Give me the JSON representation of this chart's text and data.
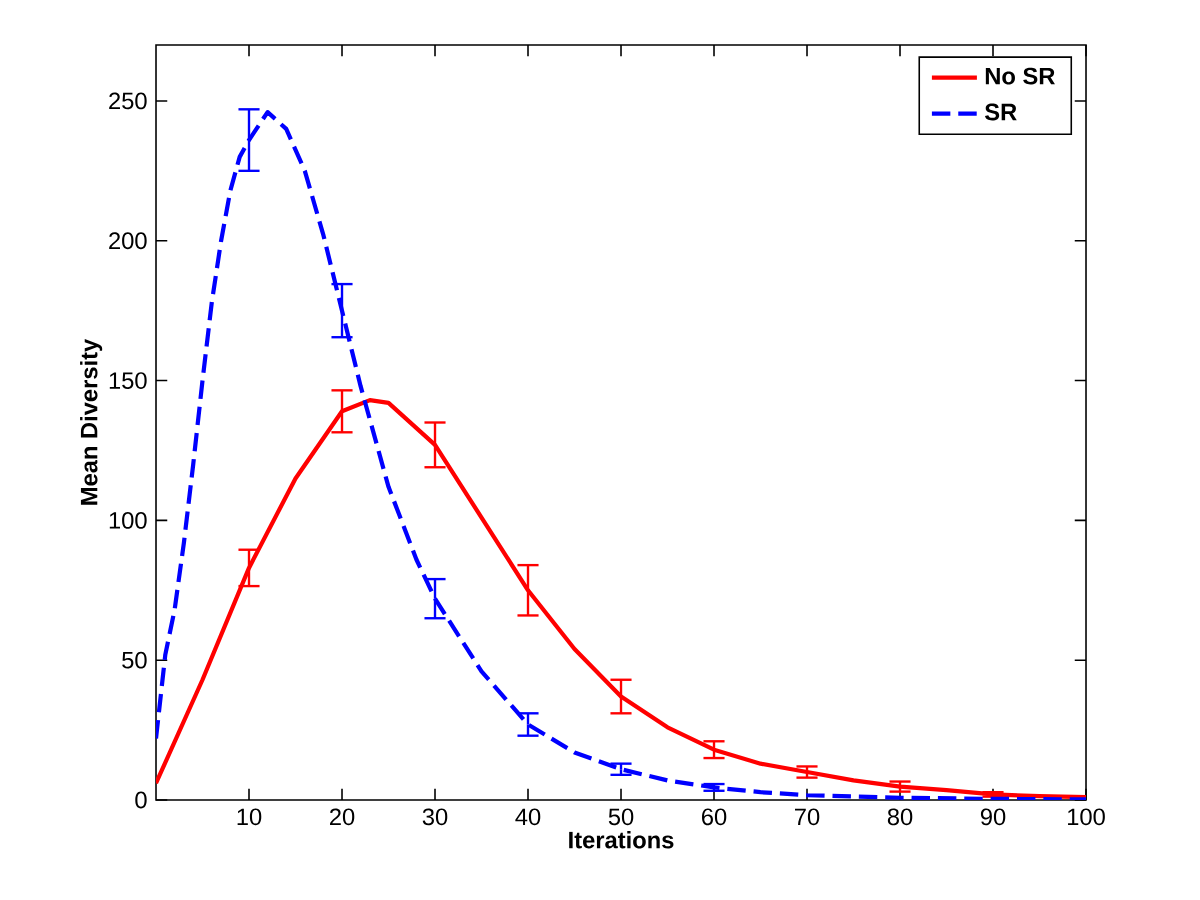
{
  "chart_data": {
    "type": "line",
    "xlabel": "Iterations",
    "ylabel": "Mean Diversity",
    "xlim": [
      0,
      100
    ],
    "xticks": [
      10,
      20,
      30,
      40,
      50,
      60,
      70,
      80,
      90,
      100
    ],
    "ylim": [
      0,
      270
    ],
    "yticks": [
      0,
      50,
      100,
      150,
      200,
      250
    ],
    "grid": false,
    "legend": "top right",
    "marker": "none",
    "series": [
      {
        "name": "No SR",
        "color": "#ff0000",
        "line_style": "solid",
        "x": [
          0,
          5,
          10,
          15,
          20,
          23,
          25,
          30,
          35,
          40,
          45,
          50,
          55,
          60,
          65,
          70,
          75,
          80,
          85,
          90,
          95,
          100
        ],
        "values": [
          6,
          43,
          83,
          115,
          139,
          143,
          142,
          127,
          101,
          75,
          54,
          37,
          26,
          18,
          13,
          10,
          7,
          4.8,
          3.5,
          2,
          1.4,
          1
        ],
        "errors": [
          null,
          null,
          6.5,
          null,
          7.5,
          null,
          null,
          8,
          null,
          9,
          null,
          6,
          null,
          3,
          null,
          2,
          null,
          1.8,
          null,
          0.8,
          null,
          null
        ]
      },
      {
        "name": "SR",
        "color": "#0000ff",
        "line_style": "dashed",
        "x": [
          0,
          1,
          2,
          3,
          4,
          5,
          6,
          7,
          8,
          9,
          10,
          12,
          14,
          16,
          18,
          20,
          22,
          25,
          28,
          30,
          35,
          40,
          45,
          50,
          55,
          60,
          65,
          70,
          80,
          90,
          100
        ],
        "values": [
          22,
          52,
          68,
          92,
          120,
          150,
          178,
          200,
          218,
          230,
          236,
          246,
          240,
          225,
          202,
          175,
          148,
          112,
          86,
          72,
          46,
          27,
          17,
          11,
          7,
          4.5,
          2.8,
          1.7,
          0.8,
          0.4,
          0.2
        ],
        "errors": [
          null,
          null,
          null,
          null,
          null,
          null,
          null,
          null,
          null,
          null,
          11,
          null,
          null,
          null,
          null,
          9.5,
          null,
          null,
          null,
          7,
          null,
          4,
          null,
          2,
          null,
          1.2,
          null,
          null,
          null,
          null,
          null
        ]
      }
    ]
  }
}
